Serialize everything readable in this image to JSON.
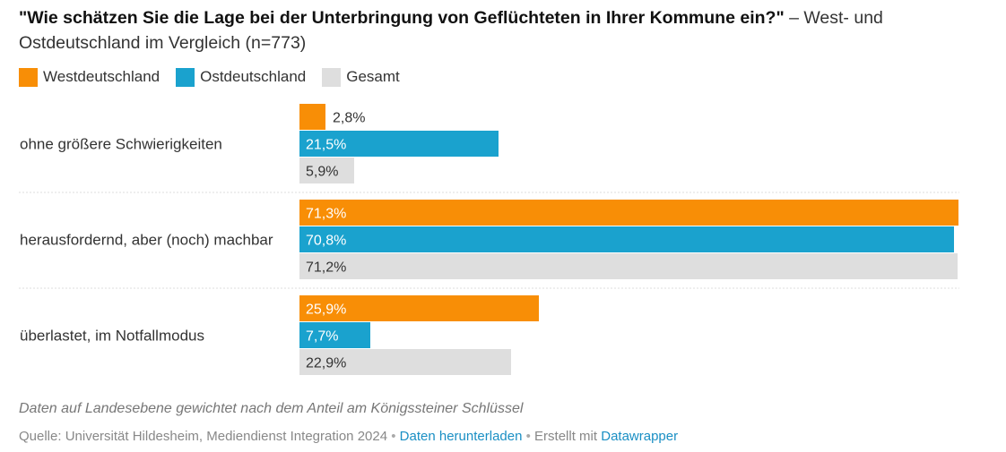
{
  "header": {
    "title_bold": "\"Wie schätzen Sie die Lage bei der Unterbringung von Geflüchteten in Ihrer Kommune ein?\"",
    "title_rest": " – West- und Ostdeutschland im Vergleich (n=773)"
  },
  "footer": {
    "note": "Daten auf Landesebene gewichtet nach dem Anteil am Königssteiner Schlüssel",
    "source_text": "Quelle: Universität Hildesheim, Mediendienst Integration 2024",
    "separator": "•",
    "download_link": "Daten herunterladen",
    "created_text": "Erstellt mit",
    "datawrapper_link": "Datawrapper"
  },
  "colors": {
    "west": "#f88e06",
    "ost": "#1aa2ce",
    "gesamt": "#dedede",
    "label_dark": "#333333",
    "label_light": "#ffffff"
  },
  "chart_data": {
    "type": "bar",
    "orientation": "horizontal",
    "unit": "%",
    "categories": [
      "ohne größere Schwierigkeiten",
      "herausfordernd, aber (noch) machbar",
      "überlastet, im Notfallmodus"
    ],
    "series": [
      {
        "name": "Westdeutschland",
        "values": [
          2.8,
          71.3,
          25.9
        ],
        "labels": [
          "2,8%",
          "71,3%",
          "25,9%"
        ]
      },
      {
        "name": "Ostdeutschland",
        "values": [
          21.5,
          70.8,
          7.7
        ],
        "labels": [
          "21,5%",
          "70,8%",
          "7,7%"
        ]
      },
      {
        "name": "Gesamt",
        "values": [
          5.9,
          71.2,
          22.9
        ],
        "labels": [
          "5,9%",
          "71,2%",
          "22,9%"
        ]
      }
    ],
    "xlim": [
      0,
      71.3
    ],
    "legend_position": "top-left",
    "grid": false
  }
}
